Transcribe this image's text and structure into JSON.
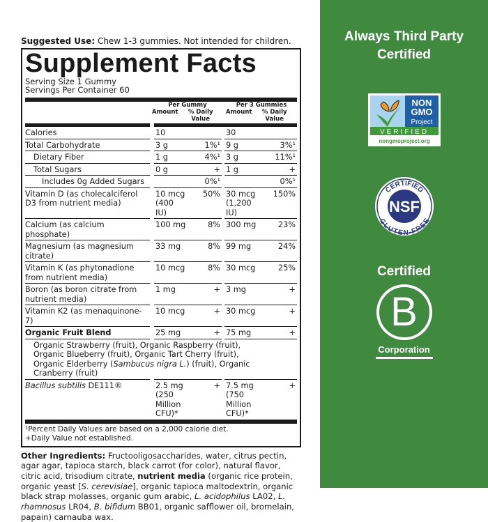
{
  "suggested_use": {
    "label": "Suggested Use:",
    "text": " Chew 1-3 gummies. Not intended for children."
  },
  "title": "Supplement Facts",
  "serving_size": "Serving Size 1 Gummy",
  "servings_per_container": "Servings Per Container 60",
  "headers": {
    "per_gummy": "Per Gummy",
    "per_3": "Per 3 Gummies",
    "amount": "Amount",
    "dv": "% Daily Value"
  },
  "rows": [
    {
      "name": "Calories",
      "a1": "10",
      "d1": "",
      "a2": "30",
      "d2": "",
      "indent": 0
    },
    {
      "name": "Total Carbohydrate",
      "a1": "3 g",
      "d1": "1%¹",
      "a2": "9 g",
      "d2": "3%¹",
      "indent": 0
    },
    {
      "name": "Dietary Fiber",
      "a1": "1 g",
      "d1": "4%¹",
      "a2": "3 g",
      "d2": "11%¹",
      "indent": 1
    },
    {
      "name": "Total Sugars",
      "a1": "0 g",
      "d1": "+",
      "a2": "1 g",
      "d2": "+",
      "indent": 1
    },
    {
      "name": "Includes 0g Added Sugars",
      "a1": "",
      "d1": "0%¹",
      "a2": "",
      "d2": "0%¹",
      "indent": 2
    },
    {
      "name": "Vitamin D (as cholecalciferol D3 from nutrient media)",
      "a1": "10 mcg (400 IU)",
      "d1": "50%",
      "a2": "30 mcg (1,200 IU)",
      "d2": "150%",
      "indent": 0
    },
    {
      "name": "Calcium (as calcium phosphate)",
      "a1": "100 mg",
      "d1": "8%",
      "a2": "300 mg",
      "d2": "23%",
      "indent": 0
    },
    {
      "name": "Magnesium (as magnesium citrate)",
      "a1": "33 mg",
      "d1": "8%",
      "a2": "99 mg",
      "d2": "24%",
      "indent": 0
    },
    {
      "name": "Vitamin K (as phytonadione from nutrient media)",
      "a1": "10 mcg",
      "d1": "8%",
      "a2": "30 mcg",
      "d2": "25%",
      "indent": 0
    },
    {
      "name": "Boron (as boron citrate from nutrient media)",
      "a1": "1 mg",
      "d1": "+",
      "a2": "3 mg",
      "d2": "+",
      "indent": 0
    },
    {
      "name": "Vitamin K2 (as menaquinone-7)",
      "a1": "10 mcg",
      "d1": "+",
      "a2": "30 mcg",
      "d2": "+",
      "indent": 0
    },
    {
      "name": "Organic Fruit Blend",
      "a1": "25 mg",
      "d1": "+",
      "a2": "75 mg",
      "d2": "+",
      "indent": 0,
      "bold": true
    }
  ],
  "blend": [
    {
      "t": "Organic Strawberry (fruit), Organic Raspberry (fruit), Organic Blueberry (fruit), Organic Tart Cherry (fruit), Organic Elderberry ("
    },
    {
      "t": "Sambucus nigra L.",
      "i": true
    },
    {
      "t": ") (fruit), Organic Cranberry (fruit)"
    }
  ],
  "bacillus": {
    "name_italic": "Bacillus subtilis",
    "name_rest": " DE111®",
    "a1": "2.5 mg (250 Million CFU)*",
    "d1": "+",
    "a2": "7.5 mg (750 Million CFU)*",
    "d2": "+"
  },
  "footnotes": [
    "¹Percent Daily Values are based on a 2,000 calorie diet.",
    "+Daily Value not established."
  ],
  "ingredients": [
    {
      "t": "Other Ingredients:",
      "b": true
    },
    {
      "t": " Fructooligosaccharides, water, citrus pectin, agar agar, tapioca starch, black carrot (for color), natural flavor, citric acid, trisodium citrate, "
    },
    {
      "t": "nutrient media",
      "b": true
    },
    {
      "t": " (organic rice protein, organic yeast ["
    },
    {
      "t": "S. cerevisiae",
      "i": true
    },
    {
      "t": "], organic tapioca maltodextrin, organic black strap molasses, organic gum arabic, "
    },
    {
      "t": "L. acidophilus",
      "i": true
    },
    {
      "t": " LA02, "
    },
    {
      "t": "L. rhamnosus",
      "i": true
    },
    {
      "t": " LR04, "
    },
    {
      "t": "B. bifidum",
      "i": true
    },
    {
      "t": " BB01, organic safflower oil, bromelain, papain) carnauba wax."
    }
  ],
  "sidebar": {
    "heading": "Always Third Party Certified",
    "nongmo": {
      "line1": "NON",
      "line2": "GMO",
      "line3": "Project",
      "verified": "VERIFIED",
      "url": "nongmoproject.org"
    },
    "nsf": {
      "top": "CERTIFIED",
      "center": "NSF",
      "bottom": "GLUTEN-FREE"
    },
    "bcorp": {
      "top": "Certified",
      "letter": "B",
      "bottom": "Corporation"
    },
    "colors": {
      "background": "#3f8a3f",
      "nsf_blue": "#2b3a80",
      "nongmo_blue": "#1f5fa8",
      "nongmo_green": "#3f9a3a"
    }
  }
}
